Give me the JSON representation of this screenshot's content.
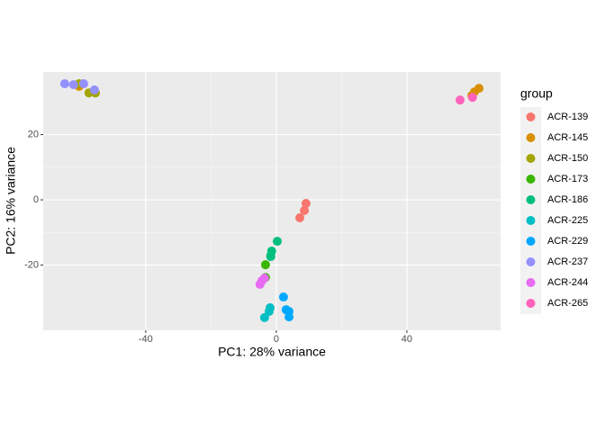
{
  "chart_data": {
    "type": "scatter",
    "xlabel": "PC1: 28% variance",
    "ylabel": "PC2: 16% variance",
    "legend_title": "group",
    "legend": "right",
    "grid": true,
    "xlim": [
      -71.4,
      68.7
    ],
    "ylim": [
      -40,
      39.2
    ],
    "xticks": [
      -40,
      0,
      40
    ],
    "yticks": [
      -20,
      0,
      20
    ],
    "series": [
      {
        "name": "ACR-139",
        "color": "#F8766D",
        "x": [
          9.1,
          8.6,
          7.2
        ],
        "y": [
          -1.1,
          -3.3,
          -5.5
        ]
      },
      {
        "name": "ACR-145",
        "color": "#D89000",
        "x": [
          -60.4,
          62.1,
          60.7,
          59.9
        ],
        "y": [
          34.8,
          34.2,
          33.1,
          32.0
        ]
      },
      {
        "name": "ACR-150",
        "color": "#A3A500",
        "x": [
          -57.4,
          -55.4,
          -60.4
        ],
        "y": [
          32.8,
          32.8,
          35.6
        ]
      },
      {
        "name": "ACR-173",
        "color": "#39B600",
        "x": [
          -3.3,
          -3.3
        ],
        "y": [
          -19.9,
          -23.8
        ]
      },
      {
        "name": "ACR-186",
        "color": "#00BF7D",
        "x": [
          0.3,
          -1.4,
          -1.7,
          -1.7
        ],
        "y": [
          -12.7,
          -15.7,
          -17.1,
          -17.4
        ]
      },
      {
        "name": "ACR-225",
        "color": "#00BFC4",
        "x": [
          -1.9,
          -2.2,
          -3.6
        ],
        "y": [
          -33.1,
          -34.2,
          -36.1
        ]
      },
      {
        "name": "ACR-229",
        "color": "#00A9FF",
        "x": [
          2.2,
          3.0,
          3.9,
          3.9
        ],
        "y": [
          -29.8,
          -33.7,
          -34.2,
          -35.9
        ]
      },
      {
        "name": "ACR-237",
        "color": "#9590FF",
        "x": [
          -64.8,
          -62.1,
          -59.0,
          -55.7
        ],
        "y": [
          35.6,
          35.3,
          35.6,
          33.7
        ]
      },
      {
        "name": "ACR-244",
        "color": "#E76BF3",
        "x": [
          -5.0,
          -4.4,
          -3.6
        ],
        "y": [
          -25.9,
          -24.8,
          -24.0
        ]
      },
      {
        "name": "ACR-265",
        "color": "#FF62BC",
        "x": [
          56.3,
          60.1
        ],
        "y": [
          30.6,
          31.4
        ]
      }
    ]
  }
}
